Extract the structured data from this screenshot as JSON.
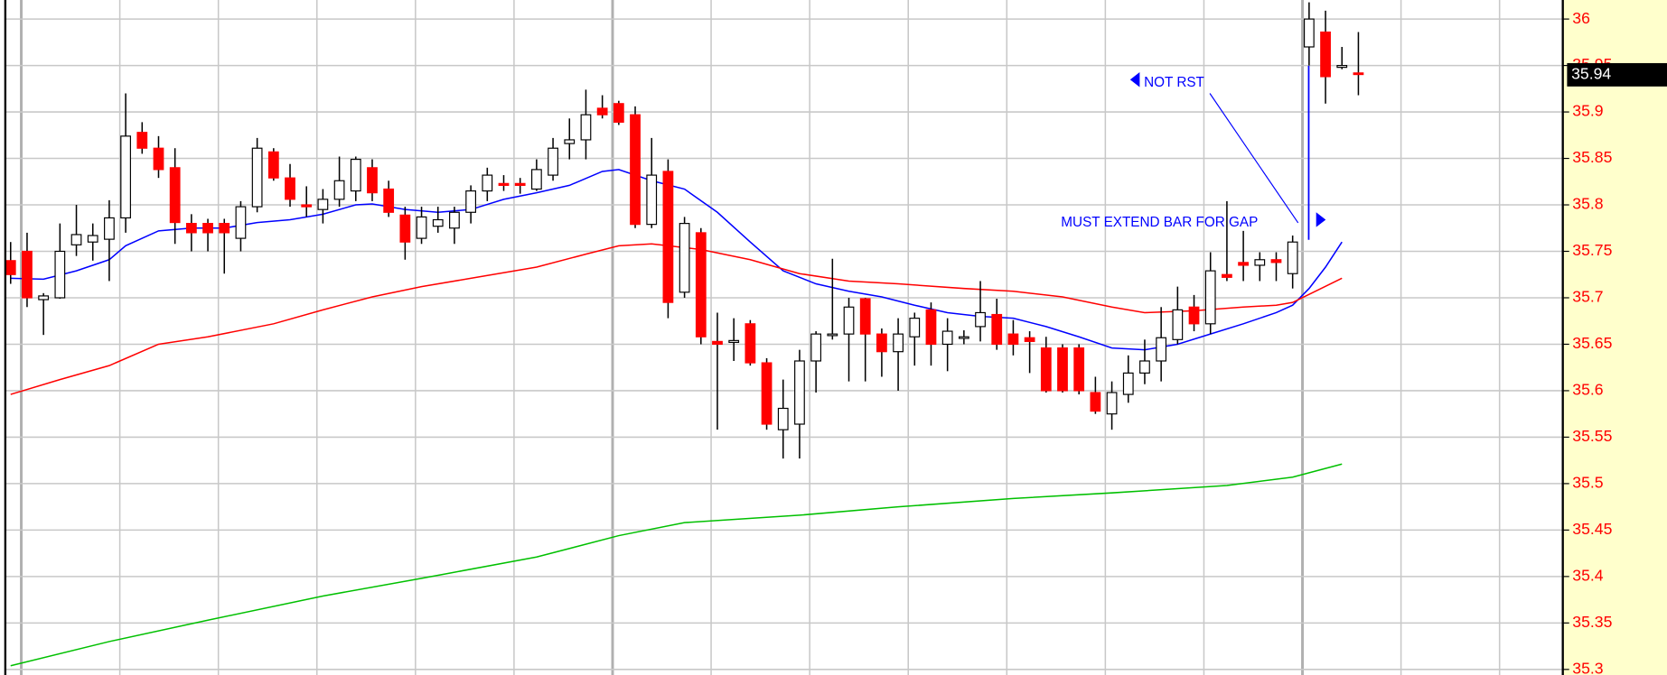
{
  "chart_data": {
    "type": "candlestick",
    "open": [
      35.74,
      35.75,
      35.698,
      35.7,
      35.757,
      35.76,
      35.763,
      35.786,
      35.878,
      35.861,
      35.84,
      35.78,
      35.78,
      35.78,
      35.764,
      35.798,
      35.857,
      35.829,
      35.8,
      35.795,
      35.806,
      35.815,
      35.84,
      35.817,
      35.789,
      35.764,
      35.777,
      35.775,
      35.792,
      35.815,
      35.823,
      35.823,
      35.817,
      35.832,
      35.866,
      35.87,
      35.904,
      35.909,
      35.897,
      35.779,
      35.836,
      35.706,
      35.77,
      35.653,
      35.652,
      35.672,
      35.63,
      35.558,
      35.564,
      35.632,
      35.66,
      35.661,
      35.699,
      35.661,
      35.642,
      35.658,
      35.687,
      35.65,
      35.657,
      35.669,
      35.682,
      35.661,
      35.657,
      35.646,
      35.646,
      35.646,
      35.598,
      35.575,
      35.596,
      35.619,
      35.632,
      35.655,
      35.69,
      35.672,
      35.725,
      35.738,
      35.735,
      35.741,
      35.726,
      35.97,
      35.986,
      35.948,
      35.942
    ],
    "high": [
      35.76,
      35.77,
      35.705,
      35.78,
      35.8,
      35.78,
      35.805,
      35.92,
      35.889,
      35.874,
      35.861,
      35.79,
      35.785,
      35.785,
      35.804,
      35.872,
      35.861,
      35.844,
      35.82,
      35.817,
      35.852,
      35.852,
      35.849,
      35.826,
      35.798,
      35.798,
      35.798,
      35.798,
      35.821,
      35.84,
      35.832,
      35.829,
      35.849,
      35.872,
      35.893,
      35.924,
      35.918,
      35.912,
      35.906,
      35.872,
      35.849,
      35.787,
      35.775,
      35.684,
      35.678,
      35.676,
      35.635,
      35.612,
      35.644,
      35.664,
      35.742,
      35.7,
      35.7,
      35.667,
      35.678,
      35.684,
      35.695,
      35.678,
      35.665,
      35.718,
      35.699,
      35.676,
      35.664,
      35.658,
      35.65,
      35.65,
      35.615,
      35.61,
      35.638,
      35.655,
      35.69,
      35.712,
      35.703,
      35.749,
      35.804,
      35.772,
      35.749,
      35.749,
      35.767,
      36.018,
      36.009,
      35.97,
      35.986
    ],
    "low": [
      35.715,
      35.69,
      35.66,
      35.699,
      35.745,
      35.74,
      35.718,
      35.77,
      35.855,
      35.829,
      35.758,
      35.75,
      35.75,
      35.726,
      35.75,
      35.792,
      35.826,
      35.798,
      35.787,
      35.78,
      35.798,
      35.804,
      35.804,
      35.787,
      35.741,
      35.758,
      35.77,
      35.758,
      35.78,
      35.804,
      35.815,
      35.812,
      35.815,
      35.826,
      35.849,
      35.849,
      35.893,
      35.886,
      35.775,
      35.775,
      35.678,
      35.7,
      35.65,
      35.558,
      35.632,
      35.627,
      35.558,
      35.527,
      35.527,
      35.598,
      35.655,
      35.61,
      35.61,
      35.615,
      35.6,
      35.627,
      35.627,
      35.621,
      35.65,
      35.653,
      35.644,
      35.638,
      35.619,
      35.598,
      35.598,
      35.596,
      35.575,
      35.558,
      35.587,
      35.607,
      35.61,
      35.65,
      35.664,
      35.661,
      35.718,
      35.718,
      35.718,
      35.718,
      35.71,
      35.95,
      35.909,
      35.946,
      35.918
    ],
    "close": [
      35.725,
      35.7,
      35.702,
      35.75,
      35.768,
      35.767,
      35.786,
      35.874,
      35.861,
      35.838,
      35.781,
      35.77,
      35.77,
      35.77,
      35.798,
      35.861,
      35.829,
      35.806,
      35.798,
      35.806,
      35.826,
      35.849,
      35.813,
      35.792,
      35.76,
      35.787,
      35.784,
      35.792,
      35.815,
      35.832,
      35.821,
      35.821,
      35.838,
      35.861,
      35.87,
      35.897,
      35.897,
      35.889,
      35.779,
      35.832,
      35.695,
      35.78,
      35.658,
      35.65,
      35.654,
      35.63,
      35.564,
      35.581,
      35.632,
      35.661,
      35.661,
      35.69,
      35.661,
      35.642,
      35.661,
      35.678,
      35.65,
      35.664,
      35.658,
      35.684,
      35.65,
      35.65,
      35.653,
      35.6,
      35.6,
      35.6,
      35.578,
      35.598,
      35.619,
      35.632,
      35.657,
      35.687,
      35.672,
      35.729,
      35.722,
      35.735,
      35.741,
      35.738,
      35.76,
      36.0,
      35.938,
      35.95,
      35.941
    ],
    "up_color": "#ffffff",
    "down_color": "#ff0000",
    "moving_averages": [
      {
        "color": "#0000ff",
        "x": [
          0,
          2,
          4,
          6,
          7,
          9,
          11,
          13,
          15,
          17,
          19,
          21,
          22,
          24,
          26,
          28,
          30,
          32,
          34,
          36,
          37,
          39,
          41,
          43,
          45,
          47,
          49,
          51,
          53,
          55,
          57,
          59,
          61,
          63,
          65,
          67,
          69,
          71,
          73,
          75,
          77,
          78,
          79,
          80,
          81
        ],
        "values": [
          35.721,
          35.72,
          35.729,
          35.741,
          35.756,
          35.772,
          35.775,
          35.775,
          35.781,
          35.784,
          35.79,
          35.8,
          35.801,
          35.795,
          35.792,
          35.795,
          35.806,
          35.813,
          35.821,
          35.836,
          35.838,
          35.826,
          35.817,
          35.792,
          35.76,
          35.729,
          35.715,
          35.707,
          35.701,
          35.692,
          35.684,
          35.68,
          35.678,
          35.669,
          35.658,
          35.646,
          35.644,
          35.65,
          35.661,
          35.672,
          35.684,
          35.692,
          35.71,
          35.733,
          35.76
        ]
      },
      {
        "color": "#ff0000",
        "x": [
          0,
          3,
          6,
          9,
          12,
          16,
          19,
          22,
          25,
          28,
          32,
          35,
          37,
          39,
          42,
          45,
          48,
          51,
          54,
          58,
          61,
          64,
          67,
          69,
          72,
          75,
          77,
          78,
          81
        ],
        "values": [
          35.596,
          35.612,
          35.627,
          35.65,
          35.658,
          35.672,
          35.687,
          35.701,
          35.712,
          35.721,
          35.733,
          35.747,
          35.756,
          35.758,
          35.752,
          35.741,
          35.726,
          35.718,
          35.715,
          35.71,
          35.707,
          35.701,
          35.69,
          35.684,
          35.686,
          35.69,
          35.692,
          35.695,
          35.721
        ]
      },
      {
        "color": "#00c000",
        "x": [
          0,
          6,
          12,
          19,
          25,
          32,
          37,
          41,
          48,
          54,
          61,
          67,
          74,
          78,
          81
        ],
        "values": [
          35.304,
          35.33,
          35.353,
          35.379,
          35.398,
          35.421,
          35.444,
          35.458,
          35.466,
          35.475,
          35.484,
          35.49,
          35.498,
          35.507,
          35.521
        ]
      }
    ],
    "ylim": [
      35.294,
      36.0205
    ],
    "yticks": [
      35.3,
      35.35,
      35.4,
      35.45,
      35.5,
      35.55,
      35.6,
      35.65,
      35.7,
      35.75,
      35.8,
      35.85,
      35.9,
      35.95,
      36
    ],
    "grid": true,
    "last_price": 35.94,
    "annotations": [
      {
        "text": "NOT RST"
      },
      {
        "text": "MUST EXTEND BAR FOR GAP"
      }
    ]
  }
}
